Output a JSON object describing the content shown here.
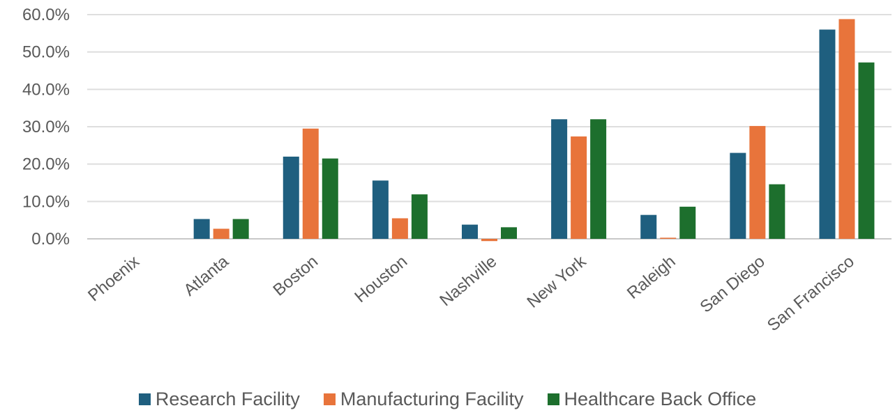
{
  "chart_data": {
    "type": "bar",
    "title": "",
    "xlabel": "",
    "ylabel": "",
    "categories": [
      "Phoenix",
      "Atlanta",
      "Boston",
      "Houston",
      "Nashville",
      "New York",
      "Raleigh",
      "San Diego",
      "San Francisco"
    ],
    "series": [
      {
        "name": "Research Facility",
        "color": "#1f5f7f",
        "values": [
          0,
          5.3,
          22.0,
          15.6,
          3.8,
          32.0,
          6.4,
          23.0,
          56.0
        ]
      },
      {
        "name": "Manufacturing Facility",
        "color": "#e8743b",
        "values": [
          0,
          2.7,
          29.5,
          5.5,
          -0.6,
          27.4,
          0.3,
          30.2,
          58.8
        ]
      },
      {
        "name": "Healthcare Back Office",
        "color": "#1d6f2d",
        "values": [
          0,
          5.3,
          21.5,
          11.9,
          3.1,
          32.0,
          8.6,
          14.6,
          47.2
        ]
      }
    ],
    "ylim": [
      0,
      60
    ],
    "ytick_labels": [
      "0.0%",
      "10.0%",
      "20.0%",
      "30.0%",
      "40.0%",
      "50.0%",
      "60.0%"
    ],
    "grid": true,
    "legend_position": "bottom"
  }
}
